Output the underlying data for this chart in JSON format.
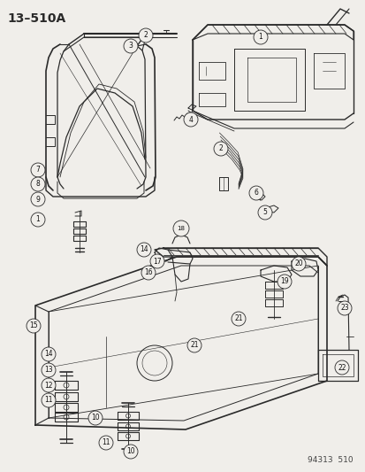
{
  "title_label": "13–510A",
  "footer_label": "94313  510",
  "bg_color": "#f0eeea",
  "line_color": "#2a2a2a",
  "label_color": "#111111",
  "title_fontsize": 10,
  "footer_fontsize": 6.5,
  "fig_width": 4.14,
  "fig_height": 5.33,
  "dpi": 100
}
